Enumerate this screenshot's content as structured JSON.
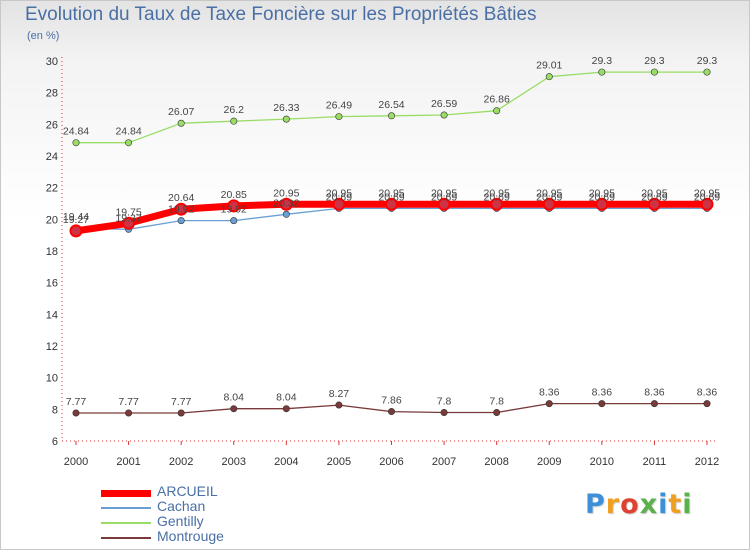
{
  "chart_data": {
    "type": "line",
    "title": "Evolution du Taux de Taxe Foncière sur les Propriétés Bâties",
    "subtitle": "(en %)",
    "x": [
      "2000",
      "2001",
      "2002",
      "2003",
      "2004",
      "2005",
      "2006",
      "2007",
      "2008",
      "2009",
      "2010",
      "2011",
      "2012"
    ],
    "ylim": [
      6,
      30
    ],
    "yticks": [
      6,
      8,
      10,
      12,
      14,
      16,
      18,
      20,
      22,
      24,
      26,
      28,
      30
    ],
    "grid": false,
    "legend_position": "bottom-left",
    "series": [
      {
        "name": "ARCUEIL",
        "color": "#ff0000",
        "values": [
          19.27,
          19.75,
          20.64,
          20.85,
          20.95,
          20.95,
          20.95,
          20.95,
          20.95,
          20.95,
          20.95,
          20.95,
          20.95
        ],
        "labels": [
          "19.27",
          "19.75",
          "20.64",
          "20.85",
          "20.95",
          "20.95",
          "20.95",
          "20.95",
          "20.95",
          "20.95",
          "20.95",
          "20.95",
          "20.95"
        ]
      },
      {
        "name": "Cachan",
        "color": "#6a9fd4",
        "values": [
          19.44,
          19.37,
          19.92,
          19.92,
          20.32,
          20.69,
          20.69,
          20.69,
          20.69,
          20.69,
          20.69,
          20.69,
          20.69
        ],
        "labels": [
          "19.44",
          "19.37",
          "19.92",
          "19.92",
          "20.32",
          "20.69",
          "20.69",
          "20.69",
          "20.69",
          "20.69",
          "20.69",
          "20.69",
          "20.69"
        ]
      },
      {
        "name": "Gentilly",
        "color": "#99dd66",
        "values": [
          24.84,
          24.84,
          26.07,
          26.2,
          26.33,
          26.49,
          26.54,
          26.59,
          26.86,
          29.01,
          29.3,
          29.3,
          29.3
        ],
        "labels": [
          "24.84",
          "24.84",
          "26.07",
          "26.2",
          "26.33",
          "26.49",
          "26.54",
          "26.59",
          "26.86",
          "29.01",
          "29.3",
          "29.3",
          "29.3"
        ]
      },
      {
        "name": "Montrouge",
        "color": "#7a3a3a",
        "values": [
          7.77,
          7.77,
          7.77,
          8.04,
          8.04,
          8.27,
          7.86,
          7.8,
          7.8,
          8.36,
          8.36,
          8.36,
          8.36
        ],
        "labels": [
          "7.77",
          "7.77",
          "7.77",
          "8.04",
          "8.04",
          "8.27",
          "7.86",
          "7.8",
          "7.8",
          "8.36",
          "8.36",
          "8.36",
          "8.36"
        ]
      }
    ]
  },
  "logo": {
    "text": "Proxiti"
  }
}
